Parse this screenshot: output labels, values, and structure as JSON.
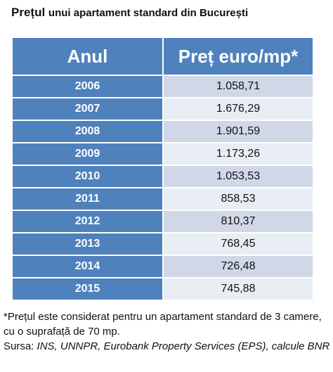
{
  "title_bold": "Prețul",
  "title_rest": "unui apartament standard din București",
  "chart_data": {
    "type": "table",
    "columns": [
      "Anul",
      "Preț euro/mp*"
    ],
    "rows": [
      {
        "year": "2006",
        "price": "1.058,71"
      },
      {
        "year": "2007",
        "price": "1.676,29"
      },
      {
        "year": "2008",
        "price": "1.901,59"
      },
      {
        "year": "2009",
        "price": "1.173,26"
      },
      {
        "year": "2010",
        "price": "1.053,53"
      },
      {
        "year": "2011",
        "price": "858,53"
      },
      {
        "year": "2012",
        "price": "810,37"
      },
      {
        "year": "2013",
        "price": "768,45"
      },
      {
        "year": "2014",
        "price": "726,48"
      },
      {
        "year": "2015",
        "price": "745,88"
      }
    ],
    "colors": {
      "header": "#4f81bd",
      "year_cell": "#4f81bd",
      "price_row_odd": "#d0d8e8",
      "price_row_even": "#e9edf4"
    }
  },
  "footnote": {
    "line1": "*Prețul este considerat pentru un apartament standard de 3 camere, cu o suprafață de 70 mp.",
    "source_prefix": "Sursa: ",
    "source_italic": "INS, UNNPR, Eurobank Property Services (EPS), calcule BNR"
  }
}
